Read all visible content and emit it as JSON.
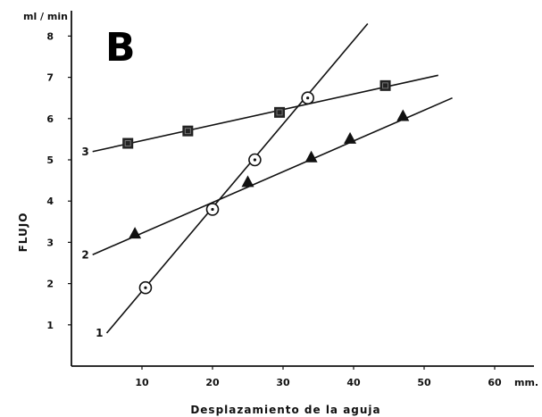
{
  "chart_data": {
    "type": "scatter",
    "panel_label": "B",
    "xlabel": "Desplazamiento de la aguja",
    "x_unit": "mm.",
    "ylabel": "FLUJO",
    "y_unit": "ml / min",
    "xlim": [
      0,
      63
    ],
    "ylim": [
      0,
      8.5
    ],
    "x_ticks": [
      10,
      20,
      30,
      40,
      50,
      60
    ],
    "y_ticks": [
      1,
      2,
      3,
      4,
      5,
      6,
      7,
      8
    ],
    "grid": false,
    "series": [
      {
        "name": "1",
        "marker": "circle-dot",
        "x": [
          10.5,
          20,
          26,
          33.5
        ],
        "y": [
          1.9,
          3.8,
          5.0,
          6.5
        ],
        "fit_line": [
          [
            5,
            0.8
          ],
          [
            42,
            8.3
          ]
        ]
      },
      {
        "name": "2",
        "marker": "triangle",
        "x": [
          9,
          25,
          34,
          39.5,
          47
        ],
        "y": [
          3.2,
          4.45,
          5.05,
          5.5,
          6.05
        ],
        "fit_line": [
          [
            3,
            2.7
          ],
          [
            54,
            6.5
          ]
        ]
      },
      {
        "name": "3",
        "marker": "square",
        "x": [
          8,
          16.5,
          29.5,
          44.5
        ],
        "y": [
          5.4,
          5.7,
          6.15,
          6.8
        ],
        "fit_line": [
          [
            3,
            5.2
          ],
          [
            52,
            7.05
          ]
        ]
      }
    ]
  }
}
